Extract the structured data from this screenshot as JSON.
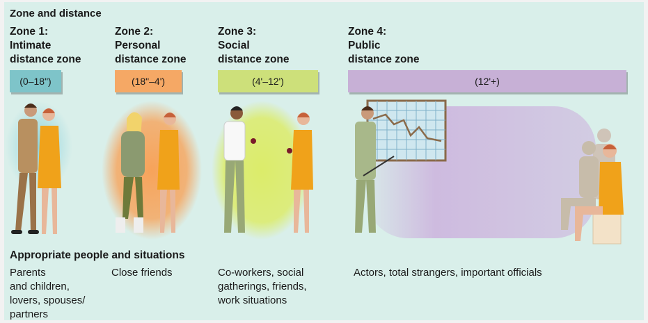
{
  "title": "Zone and distance",
  "zones": [
    {
      "heading": [
        "Zone 1:",
        "Intimate",
        "distance zone"
      ],
      "range": "(0–18\")",
      "bar_color": "#7ec4c9",
      "glow_color": "#8fd3dc"
    },
    {
      "heading": [
        "Zone 2:",
        "Personal",
        "distance zone"
      ],
      "range": "(18\"–4')",
      "bar_color": "#f5a865",
      "glow_color": "#f7a35a"
    },
    {
      "heading": [
        "Zone 3:",
        "Social",
        "distance zone"
      ],
      "range": "(4'–12')",
      "bar_color": "#cde07a",
      "glow_color": "#dcec6a"
    },
    {
      "heading": [
        "Zone 4:",
        "Public",
        "distance zone"
      ],
      "range": "(12'+)",
      "bar_color": "#c7b0d6",
      "glow_color": "#cdb5de"
    }
  ],
  "situations_heading": "Appropriate people and situations",
  "situations": [
    [
      "Parents",
      "and children,",
      "lovers, spouses/",
      "partners"
    ],
    [
      "Close friends"
    ],
    [
      "Co-workers, social",
      "gatherings, friends,",
      "work situations"
    ],
    [
      "Actors, total strangers, important officials"
    ]
  ]
}
